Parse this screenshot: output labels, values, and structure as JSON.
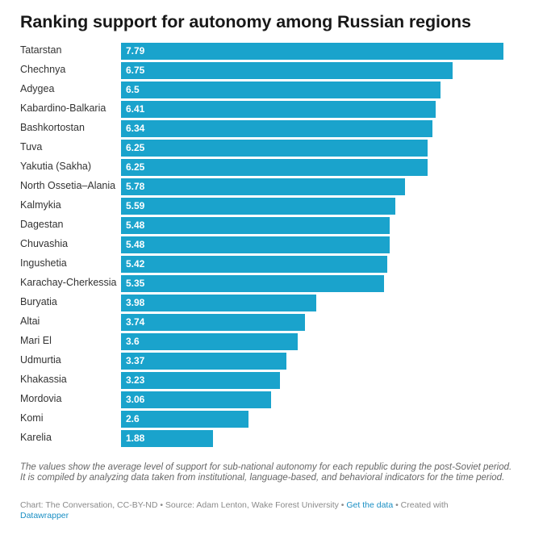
{
  "chart_data": {
    "type": "bar",
    "orientation": "horizontal",
    "title": "Ranking support for autonomy among Russian regions",
    "categories": [
      "Tatarstan",
      "Chechnya",
      "Adygea",
      "Kabardino-Balkaria",
      "Bashkortostan",
      "Tuva",
      "Yakutia (Sakha)",
      "North Ossetia–Alania",
      "Kalmykia",
      "Dagestan",
      "Chuvashia",
      "Ingushetia",
      "Karachay-Cherkessia",
      "Buryatia",
      "Altai",
      "Mari El",
      "Udmurtia",
      "Khakassia",
      "Mordovia",
      "Komi",
      "Karelia"
    ],
    "values": [
      7.79,
      6.75,
      6.5,
      6.41,
      6.34,
      6.25,
      6.25,
      5.78,
      5.59,
      5.48,
      5.48,
      5.42,
      5.35,
      3.98,
      3.74,
      3.6,
      3.37,
      3.23,
      3.06,
      2.6,
      1.88
    ],
    "value_labels": [
      "7.79",
      "6.75",
      "6.5",
      "6.41",
      "6.34",
      "6.25",
      "6.25",
      "5.78",
      "5.59",
      "5.48",
      "5.48",
      "5.42",
      "5.35",
      "3.98",
      "3.74",
      "3.6",
      "3.37",
      "3.23",
      "3.06",
      "2.6",
      "1.88"
    ],
    "xlim": [
      0,
      7.79
    ],
    "grid": false,
    "bar_color": "#1aa3cc"
  },
  "notes": "The values show the average level of support for sub-national autonomy for each republic during the post-Soviet period. It is compiled by analyzing data taken from institutional, language-based, and behavioral indicators for the time period.",
  "footer": {
    "credit": "Chart: The Conversation, CC-BY-ND • Source: Adam Lenton, Wake Forest University • ",
    "get_data_link": "Get the data",
    "created_with": " • Created with ",
    "tool_link": "Datawrapper"
  },
  "colors": {
    "bar": "#1aa3cc",
    "link": "#1a8fc4"
  }
}
